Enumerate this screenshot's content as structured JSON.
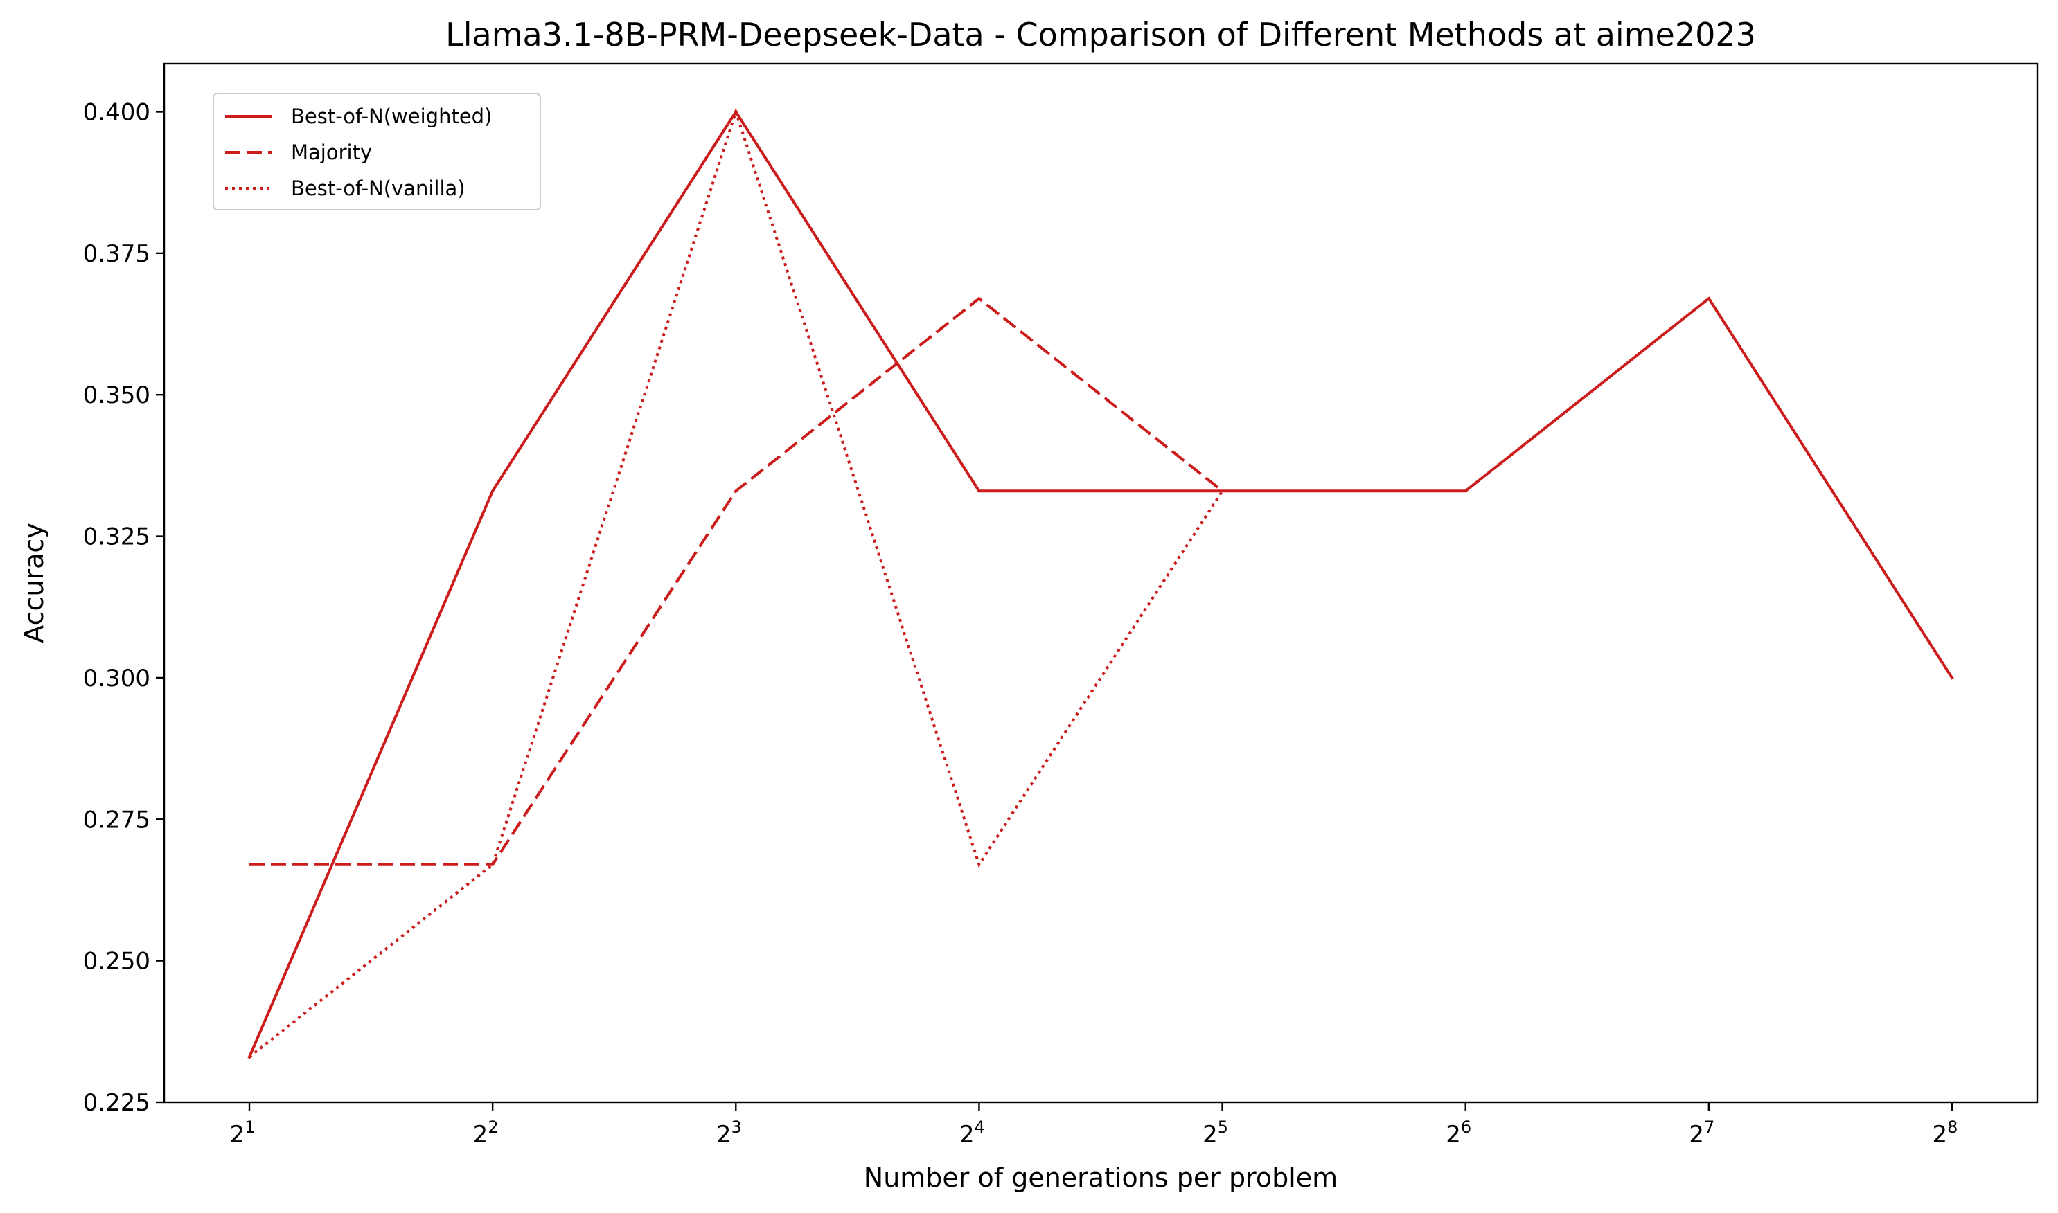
{
  "chart_data": {
    "type": "line",
    "title": "Llama3.1-8B-PRM-Deepseek-Data - Comparison of Different Methods at aime2023",
    "xlabel": "Number of generations per problem",
    "ylabel": "Accuracy",
    "x": [
      2,
      4,
      8,
      16,
      32,
      64,
      128,
      256
    ],
    "x_scale": "log2",
    "x_tick_labels": [
      {
        "base": "2",
        "exp": "1"
      },
      {
        "base": "2",
        "exp": "2"
      },
      {
        "base": "2",
        "exp": "3"
      },
      {
        "base": "2",
        "exp": "4"
      },
      {
        "base": "2",
        "exp": "5"
      },
      {
        "base": "2",
        "exp": "6"
      },
      {
        "base": "2",
        "exp": "7"
      },
      {
        "base": "2",
        "exp": "8"
      }
    ],
    "ylim": [
      0.225,
      0.4085
    ],
    "y_ticks": [
      "0.225",
      "0.250",
      "0.275",
      "0.300",
      "0.325",
      "0.350",
      "0.375",
      "0.400"
    ],
    "grid": false,
    "legend_position": "top-left",
    "series": [
      {
        "name": "Best-of-N(weighted)",
        "style": "solid",
        "color": "#cc1c1c",
        "values": [
          0.233,
          0.333,
          0.4,
          0.333,
          0.333,
          0.333,
          0.367,
          0.3
        ]
      },
      {
        "name": "Majority",
        "style": "dashed",
        "color": "#cc1c1c",
        "values": [
          0.267,
          0.267,
          0.333,
          0.367,
          0.333,
          null,
          null,
          null
        ]
      },
      {
        "name": "Best-of-N(vanilla)",
        "style": "dotted",
        "color": "#cc1c1c",
        "values": [
          0.233,
          0.267,
          0.4,
          0.267,
          0.333,
          null,
          null,
          null
        ]
      }
    ]
  }
}
